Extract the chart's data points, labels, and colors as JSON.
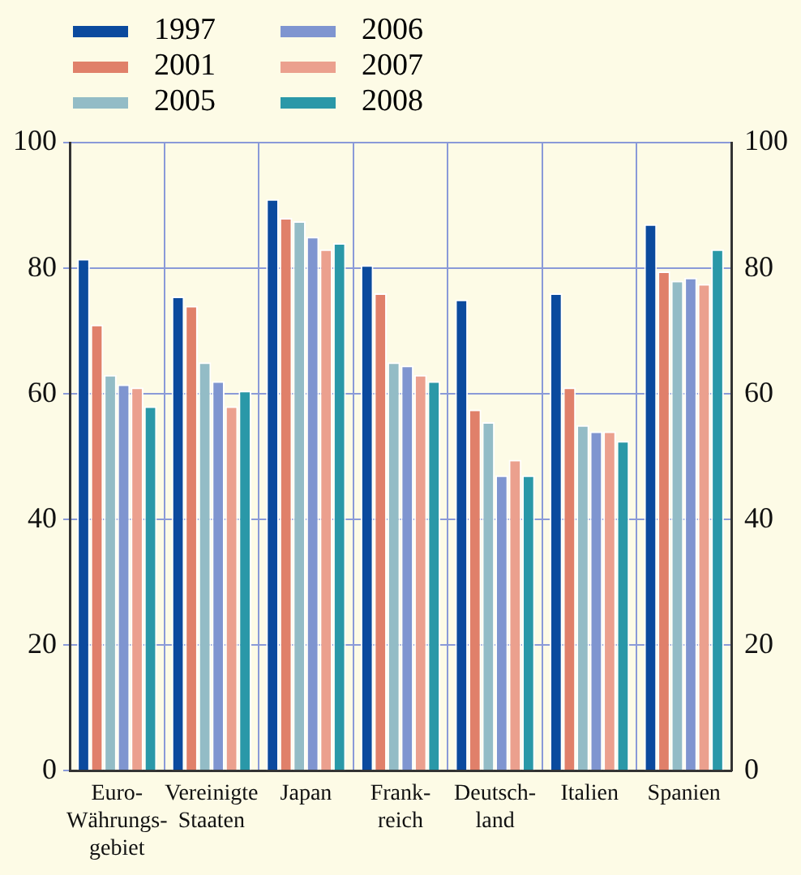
{
  "chart_data": {
    "type": "bar",
    "categories": [
      "Euro-\nWährungs-\ngebiet",
      "Vereinigte\nStaaten",
      "Japan",
      "Frank-\nreich",
      "Deutsch-\nland",
      "Italien",
      "Spanien"
    ],
    "series": [
      {
        "name": "1997",
        "color": "#0b4a9e",
        "values": [
          81.5,
          75.5,
          91,
          80.5,
          75,
          76,
          87
        ]
      },
      {
        "name": "2001",
        "color": "#e0806a",
        "values": [
          71,
          74,
          88,
          76,
          57.5,
          61,
          79.5
        ]
      },
      {
        "name": "2005",
        "color": "#93bcc6",
        "values": [
          63,
          65,
          87.5,
          65,
          55.5,
          55,
          78
        ]
      },
      {
        "name": "2006",
        "color": "#7f95d0",
        "values": [
          61.5,
          62,
          85,
          64.5,
          47,
          54,
          78.5
        ]
      },
      {
        "name": "2007",
        "color": "#eba08e",
        "values": [
          61,
          58,
          83,
          63,
          49.5,
          54,
          77.5
        ]
      },
      {
        "name": "2008",
        "color": "#2a98a8",
        "values": [
          58,
          60.5,
          84,
          62,
          47,
          52.5,
          83
        ]
      }
    ],
    "ylim": [
      0,
      100
    ],
    "yticks": [
      0,
      20,
      40,
      60,
      80,
      100
    ],
    "y2lim": [
      0,
      100
    ],
    "y2ticks": [
      0,
      20,
      40,
      60,
      80,
      100
    ],
    "grid": true,
    "legend": "top left"
  }
}
